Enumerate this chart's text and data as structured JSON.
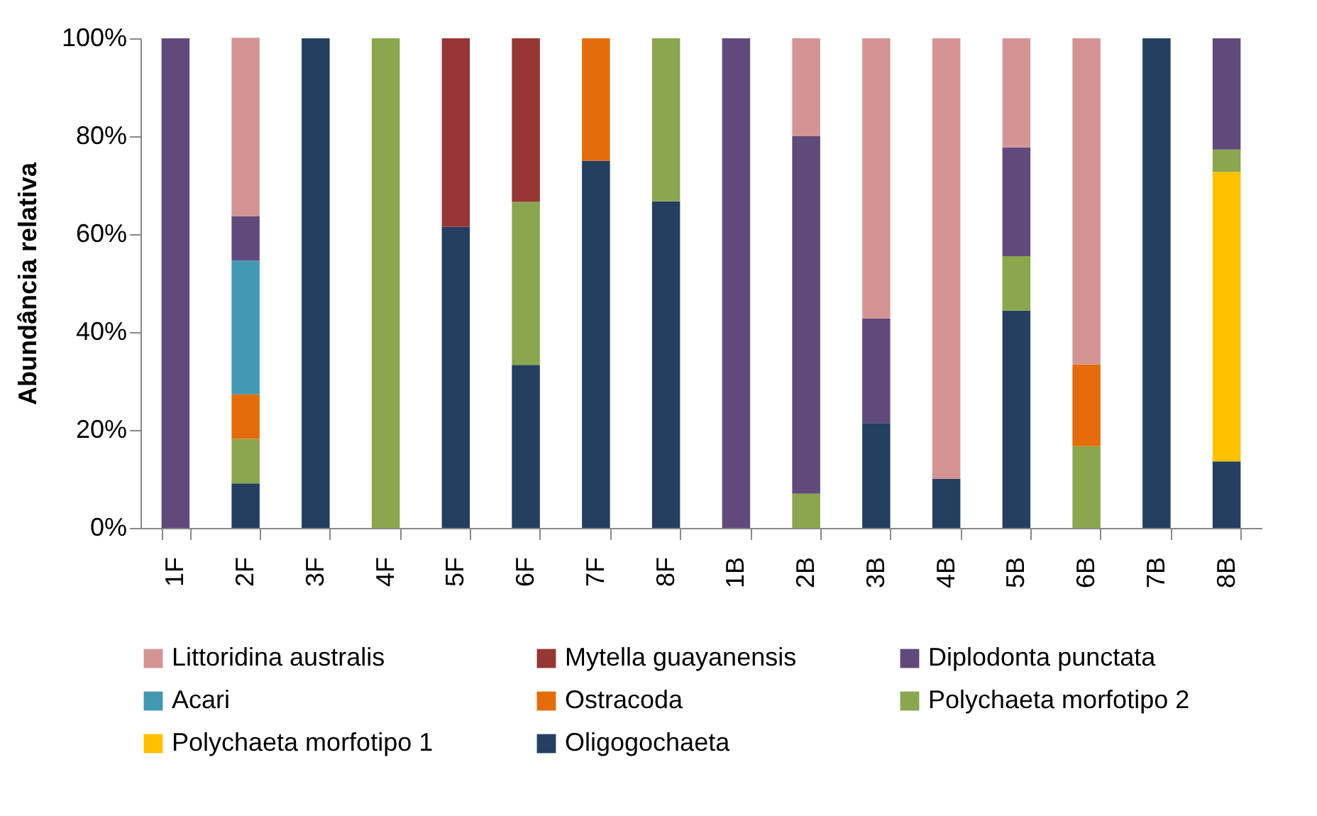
{
  "chart_data": {
    "type": "bar",
    "stacked": true,
    "ylabel": "Abundância relativa",
    "categories": [
      "1F",
      "2F",
      "3F",
      "4F",
      "5F",
      "6F",
      "7F",
      "8F",
      "1B",
      "2B",
      "3B",
      "4B",
      "5B",
      "6B",
      "7B",
      "8B"
    ],
    "series": [
      {
        "name": "Oligogochaeta",
        "color": "#243f60",
        "values": [
          null,
          9.1,
          100,
          null,
          61.5,
          33.3,
          75,
          66.7,
          null,
          null,
          21.4,
          10,
          44.4,
          null,
          100,
          13.6
        ]
      },
      {
        "name": "Polychaeta morfotipo 1",
        "color": "#ffc000",
        "values": [
          null,
          null,
          null,
          null,
          null,
          null,
          null,
          null,
          null,
          null,
          null,
          null,
          null,
          null,
          null,
          59.1
        ]
      },
      {
        "name": "Polychaeta morfotipo 2",
        "color": "#8aa64e",
        "values": [
          null,
          9.1,
          null,
          100,
          null,
          33.3,
          null,
          33.3,
          null,
          7,
          null,
          null,
          11.1,
          16.7,
          null,
          4.6
        ]
      },
      {
        "name": "Ostracoda",
        "color": "#e46c0a",
        "values": [
          null,
          9.1,
          null,
          null,
          null,
          null,
          25,
          null,
          null,
          null,
          null,
          null,
          null,
          16.7,
          null,
          null
        ]
      },
      {
        "name": "Acari",
        "color": "#4298b0",
        "values": [
          null,
          27.3,
          null,
          null,
          null,
          null,
          null,
          null,
          null,
          null,
          null,
          null,
          null,
          null,
          null,
          null
        ]
      },
      {
        "name": "Diplodonta punctata",
        "color": "#604a7b",
        "values": [
          100,
          9.1,
          null,
          null,
          null,
          null,
          null,
          null,
          100,
          73,
          21.4,
          null,
          22.2,
          null,
          null,
          22.7
        ]
      },
      {
        "name": "Mytella guayanensis",
        "color": "#953735",
        "values": [
          null,
          null,
          null,
          null,
          38.5,
          33.4,
          null,
          null,
          null,
          null,
          null,
          null,
          null,
          null,
          null,
          null
        ]
      },
      {
        "name": "Littoridina australis",
        "color": "#d49494",
        "values": [
          null,
          36.4,
          null,
          null,
          null,
          null,
          null,
          null,
          null,
          20,
          57.2,
          90,
          22.3,
          66.6,
          null,
          null
        ]
      }
    ],
    "ylim": [
      0,
      100
    ],
    "yticks": [
      {
        "value": 0,
        "label": "0%"
      },
      {
        "value": 20,
        "label": "20%"
      },
      {
        "value": 40,
        "label": "40%"
      },
      {
        "value": 60,
        "label": "60%"
      },
      {
        "value": 80,
        "label": "80%"
      },
      {
        "value": 100,
        "label": "100%"
      }
    ],
    "legend": "bottom"
  }
}
